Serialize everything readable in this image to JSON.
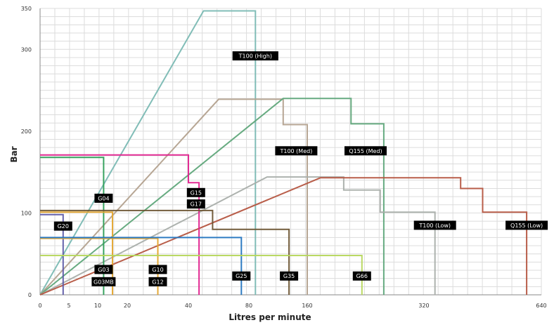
{
  "chart_data": {
    "type": "line",
    "xlabel": "Litres per minute",
    "ylabel": "Bar",
    "ylim": [
      0,
      350
    ],
    "grid": true,
    "x_ticks": [
      {
        "label": "0",
        "value": 0
      },
      {
        "label": "5",
        "value": 5
      },
      {
        "label": "10",
        "value": 10
      },
      {
        "label": "20",
        "value": 20
      },
      {
        "label": "40",
        "value": 40
      },
      {
        "label": "80",
        "value": 80
      },
      {
        "label": "160",
        "value": 160
      },
      {
        "label": "320",
        "value": 320
      },
      {
        "label": "640",
        "value": 640
      }
    ],
    "y_ticks": [
      0,
      100,
      200,
      300,
      350
    ],
    "series": [
      {
        "name": "T100 (High)",
        "color": "#7ab9b3",
        "points": [
          [
            0,
            0
          ],
          [
            50,
            347
          ],
          [
            89,
            347
          ],
          [
            89,
            0
          ]
        ]
      },
      {
        "name": "T100 (Med)",
        "color": "#b3a18e",
        "points": [
          [
            0,
            0
          ],
          [
            60,
            239
          ],
          [
            127,
            239
          ],
          [
            127,
            208
          ],
          [
            160,
            208
          ],
          [
            160,
            0
          ]
        ]
      },
      {
        "name": "Q155 (Med)",
        "color": "#5fa77a",
        "points": [
          [
            0,
            0
          ],
          [
            127,
            240
          ],
          [
            220,
            240
          ],
          [
            220,
            209
          ],
          [
            265,
            209
          ],
          [
            265,
            0
          ]
        ]
      },
      {
        "name": "T100 (Low)",
        "color": "#a9aeaa",
        "points": [
          [
            0,
            0
          ],
          [
            105,
            144
          ],
          [
            210,
            144
          ],
          [
            210,
            128
          ],
          [
            260,
            128
          ],
          [
            260,
            101
          ],
          [
            350,
            101
          ],
          [
            350,
            0
          ]
        ]
      },
      {
        "name": "Q155 (Low)",
        "color": "#b55540",
        "points": [
          [
            0,
            0
          ],
          [
            178,
            143
          ],
          [
            420,
            143
          ],
          [
            420,
            130
          ],
          [
            480,
            130
          ],
          [
            480,
            101
          ],
          [
            600,
            101
          ],
          [
            600,
            0
          ]
        ]
      },
      {
        "name": "G15",
        "color": "#e2218e",
        "points": [
          [
            0,
            171
          ],
          [
            40,
            171
          ],
          [
            40,
            137
          ],
          [
            47,
            137
          ],
          [
            47,
            0
          ]
        ]
      },
      {
        "name": "G17",
        "color": "#cccccc",
        "points": []
      },
      {
        "name": "G04",
        "color": "#2e9e57",
        "points": [
          [
            0,
            168
          ],
          [
            12,
            168
          ],
          [
            12,
            0
          ]
        ]
      },
      {
        "name": "G20",
        "color": "#5e5aa6",
        "points": [
          [
            0,
            98
          ],
          [
            4,
            98
          ],
          [
            4,
            0
          ]
        ]
      },
      {
        "name": "G03",
        "color": "#e4a52e",
        "points": [
          [
            0,
            101
          ],
          [
            15,
            101
          ],
          [
            15,
            0
          ]
        ]
      },
      {
        "name": "G03MB",
        "color": "#d1c66a",
        "points": []
      },
      {
        "name": "G10",
        "color": "#e4a52e",
        "points": [
          [
            0,
            69
          ],
          [
            30,
            69
          ],
          [
            30,
            0
          ]
        ]
      },
      {
        "name": "G12",
        "color": "#cccccc",
        "points": []
      },
      {
        "name": "G25",
        "color": "#2475c0",
        "points": [
          [
            0,
            70
          ],
          [
            75,
            70
          ],
          [
            75,
            0
          ]
        ]
      },
      {
        "name": "G35",
        "color": "#6b5432",
        "points": [
          [
            0,
            103
          ],
          [
            56,
            103
          ],
          [
            56,
            80
          ],
          [
            135,
            80
          ],
          [
            135,
            0
          ]
        ]
      },
      {
        "name": "G66",
        "color": "#b6d75c",
        "points": [
          [
            0,
            48
          ],
          [
            235,
            48
          ],
          [
            235,
            0
          ]
        ]
      }
    ],
    "labels": [
      {
        "text": "T100 (High)",
        "x": 89,
        "y": 292
      },
      {
        "text": "T100 (Med)",
        "x": 145,
        "y": 176
      },
      {
        "text": "Q155 (Med)",
        "x": 240,
        "y": 176
      },
      {
        "text": "T100 (Low)",
        "x": 350,
        "y": 85
      },
      {
        "text": "Q155 (Low)",
        "x": 600,
        "y": 85
      },
      {
        "text": "G15",
        "x": 45,
        "y": 125
      },
      {
        "text": "G17",
        "x": 45,
        "y": 111
      },
      {
        "text": "G04",
        "x": 12,
        "y": 118
      },
      {
        "text": "G20",
        "x": 4,
        "y": 84
      },
      {
        "text": "G03",
        "x": 12,
        "y": 31
      },
      {
        "text": "G03MB",
        "x": 12,
        "y": 16
      },
      {
        "text": "G10",
        "x": 30,
        "y": 31
      },
      {
        "text": "G12",
        "x": 30,
        "y": 16
      },
      {
        "text": "G25",
        "x": 75,
        "y": 23
      },
      {
        "text": "G35",
        "x": 135,
        "y": 23
      },
      {
        "text": "G66",
        "x": 235,
        "y": 23
      }
    ]
  }
}
